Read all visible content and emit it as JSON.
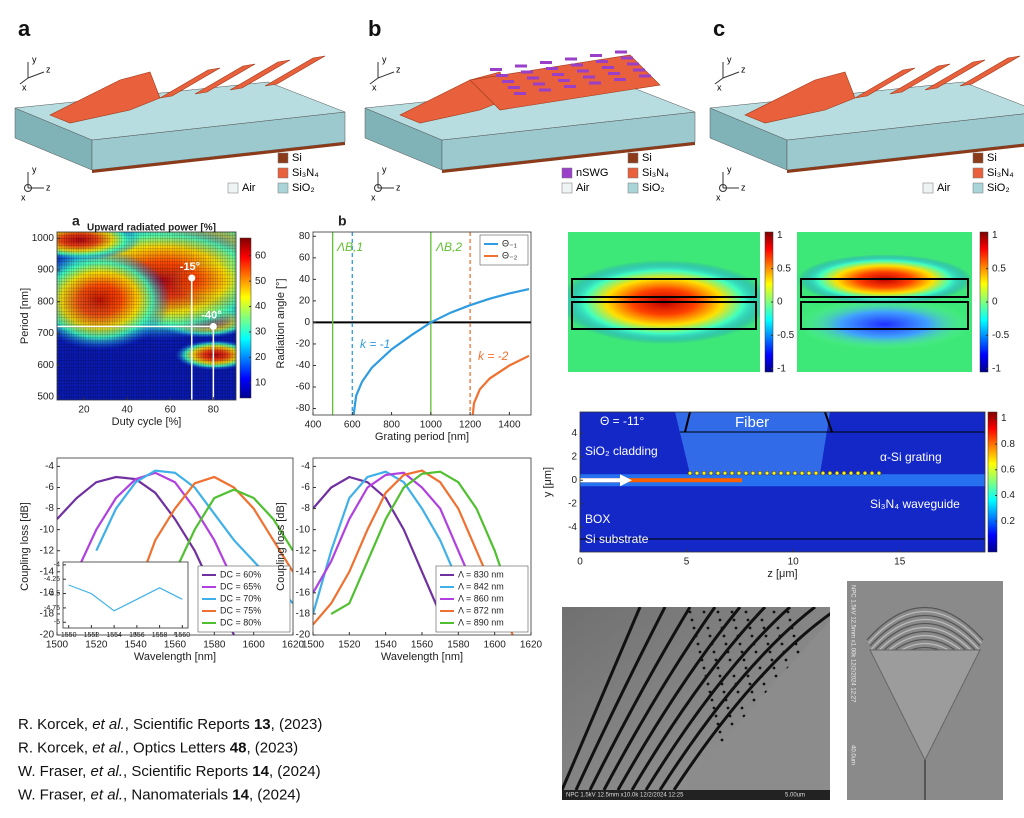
{
  "schematics": [
    {
      "letter": "a",
      "legend": [
        {
          "label": "Si",
          "color": "#8b3a1a"
        },
        {
          "label": "Si₃N₄",
          "color": "#e8603c"
        },
        {
          "label": "Air",
          "color": "#eef3f3"
        },
        {
          "label": "SiO₂",
          "color": "#a9d5d9"
        }
      ]
    },
    {
      "letter": "b",
      "legend": [
        {
          "label": "nSWG",
          "color": "#9a40c8"
        },
        {
          "label": "Si",
          "color": "#8b3a1a"
        },
        {
          "label": "Si₃N₄",
          "color": "#e8603c"
        },
        {
          "label": "Air",
          "color": "#eef3f3"
        },
        {
          "label": "SiO₂",
          "color": "#a9d5d9"
        }
      ]
    },
    {
      "letter": "c",
      "legend": [
        {
          "label": "Si",
          "color": "#8b3a1a"
        },
        {
          "label": "Si₃N₄",
          "color": "#e8603c"
        },
        {
          "label": "Air",
          "color": "#eef3f3"
        },
        {
          "label": "SiO₂",
          "color": "#a9d5d9"
        }
      ]
    }
  ],
  "axis_labels": [
    "x",
    "y",
    "z"
  ],
  "chart_data": [
    {
      "type": "heatmap",
      "letter": "a",
      "title": "Upward radiated power [%]",
      "x_label": "Duty cycle [%]",
      "y_label": "Period [nm]",
      "xlim": [
        7.5,
        90.5
      ],
      "xticks": [
        20,
        40,
        60,
        80
      ],
      "ylim": [
        490,
        1020
      ],
      "yticks": [
        500,
        600,
        700,
        800,
        900,
        1000
      ],
      "clim": [
        4,
        67
      ],
      "cticks": [
        10,
        20,
        30,
        40,
        50,
        60
      ],
      "points": {
        "x": [
          70,
          80
        ],
        "y": [
          875,
          722
        ],
        "labels": [
          "-15°",
          "-40°"
        ]
      }
    },
    {
      "type": "line",
      "letter": "b",
      "x_label": "Grating period [nm]",
      "y_label": "Radiation angle [°]",
      "xlim": [
        400,
        1510
      ],
      "xticks": [
        400,
        600,
        800,
        1000,
        1200,
        1400
      ],
      "ylim": [
        -86,
        84
      ],
      "yticks": [
        -80,
        -60,
        -40,
        -20,
        0,
        20,
        40,
        60,
        80
      ],
      "zero_line": true,
      "legend": "upper right",
      "series": [
        {
          "name": "Θ₋₁",
          "color": "#2f9be0",
          "x": [
            605,
            620,
            650,
            700,
            800,
            900,
            1000,
            1100,
            1200,
            1300,
            1400,
            1500
          ],
          "values": [
            -88,
            -68,
            -55,
            -42,
            -25,
            -12,
            0,
            9,
            16,
            22,
            27,
            31
          ]
        },
        {
          "name": "Θ₋₂",
          "color": "#f07030",
          "x": [
            1212,
            1220,
            1250,
            1300,
            1400,
            1500
          ],
          "values": [
            -88,
            -75,
            -62,
            -52,
            -40,
            -31
          ]
        }
      ],
      "vlines": [
        {
          "x": 500,
          "label": "ΛB,1",
          "color": "#60c030"
        },
        {
          "x": 1000,
          "label": "ΛB,2",
          "color": "#60c030"
        },
        {
          "x": 600,
          "color": "#2f9be0",
          "dashed": true
        },
        {
          "x": 1200,
          "color": "#f07030",
          "dashed": true
        }
      ],
      "annotations": [
        "k = -1",
        "k = -2"
      ]
    },
    {
      "type": "line",
      "x_label": "Wavelength [nm]",
      "y_label": "Coupling loss [dB]",
      "xlim": [
        1500,
        1620
      ],
      "xticks": [
        1500,
        1520,
        1540,
        1560,
        1580,
        1600,
        1620
      ],
      "ylim": [
        -20,
        -3.2
      ],
      "yticks": [
        -20,
        -18,
        -16,
        -14,
        -12,
        -10,
        -8,
        -6,
        -4
      ],
      "legend": "lower right",
      "x": [
        1500,
        1510,
        1520,
        1530,
        1540,
        1550,
        1560,
        1570,
        1580,
        1590,
        1600,
        1610,
        1620
      ],
      "series": [
        {
          "name": "DC = 60%",
          "color": "#7030a0",
          "values": [
            -9,
            -7,
            -5.5,
            -5,
            -5.2,
            -6.5,
            -9,
            -12,
            -16,
            -20,
            null,
            null,
            null
          ]
        },
        {
          "name": "DC = 65%",
          "color": "#b040e0",
          "values": [
            null,
            -14,
            -10,
            -7,
            -5.2,
            -4.6,
            -5.5,
            -8,
            -11,
            -15,
            -19,
            null,
            null
          ]
        },
        {
          "name": "DC = 70%",
          "color": "#40b0e8",
          "values": [
            null,
            null,
            -12,
            -8,
            -5.5,
            -4.4,
            -4.6,
            -6,
            -8.5,
            -11,
            -13,
            -15,
            -17
          ]
        },
        {
          "name": "DC = 75%",
          "color": "#f07030",
          "values": [
            null,
            null,
            null,
            null,
            -16,
            -11,
            -8,
            -5.6,
            -5,
            -6,
            -8,
            -11,
            -14
          ]
        },
        {
          "name": "DC = 80%",
          "color": "#50c030",
          "values": [
            null,
            null,
            null,
            null,
            null,
            -18,
            -14,
            -10,
            -7,
            -6.2,
            -7,
            -9,
            -12
          ]
        }
      ]
    },
    {
      "type": "line",
      "xlim": [
        1549.5,
        1560.5
      ],
      "xticks": [
        1550,
        1552,
        1554,
        1556,
        1558,
        1560
      ],
      "ylim": [
        -5.1,
        -3.95
      ],
      "yticks": [
        -5,
        -4.75,
        -4.5,
        -4.25,
        -4
      ],
      "x": [
        1550,
        1552,
        1554,
        1556,
        1558,
        1560
      ],
      "series": [
        {
          "color": "#40b0e8",
          "values": [
            -4.35,
            -4.5,
            -4.8,
            -4.6,
            -4.4,
            -4.6
          ]
        }
      ]
    },
    {
      "type": "line",
      "x_label": "Wavelength [nm]",
      "y_label": "Coupling loss [dB]",
      "xlim": [
        1500,
        1620
      ],
      "xticks": [
        1500,
        1520,
        1540,
        1560,
        1580,
        1600,
        1620
      ],
      "ylim": [
        -20,
        -3.2
      ],
      "yticks": [
        -20,
        -18,
        -16,
        -14,
        -12,
        -10,
        -8,
        -6,
        -4
      ],
      "legend": "lower right",
      "x": [
        1500,
        1510,
        1520,
        1530,
        1540,
        1550,
        1560,
        1570,
        1580,
        1590,
        1600,
        1610,
        1620
      ],
      "series": [
        {
          "name": "Λ = 830 nm",
          "color": "#7030a0",
          "values": [
            -8,
            -6,
            -5,
            -5.5,
            -7,
            -10,
            -14,
            -18,
            null,
            null,
            null,
            null,
            null
          ]
        },
        {
          "name": "Λ = 842 nm",
          "color": "#40b0e8",
          "values": [
            -18,
            -12,
            -7,
            -5,
            -4.5,
            -5.5,
            -8,
            -11,
            -15,
            -19,
            null,
            null,
            null
          ]
        },
        {
          "name": "Λ = 860 nm",
          "color": "#b040e0",
          "values": [
            -16,
            -13,
            -9,
            -6,
            -4.8,
            -4.6,
            -6,
            -8,
            -12,
            -16,
            -19,
            null,
            null
          ]
        },
        {
          "name": "Λ = 872 nm",
          "color": "#f07030",
          "values": [
            -19,
            -17,
            -14,
            -10,
            -6.5,
            -4.8,
            -4.4,
            -5.5,
            -8,
            -12,
            -16,
            -20,
            null
          ]
        },
        {
          "name": "Λ = 890 nm",
          "color": "#50c030",
          "values": [
            null,
            -18,
            -17,
            -13,
            -9,
            -6,
            -4.7,
            -4.5,
            -5.5,
            -8,
            -12,
            -17,
            null
          ]
        }
      ]
    },
    {
      "type": "field",
      "clim": [
        -1.05,
        1.05
      ],
      "cticks": [
        -1,
        -0.5,
        0,
        0.5,
        1
      ]
    },
    {
      "type": "field",
      "clim": [
        -1.05,
        1.05
      ],
      "cticks": [
        -1,
        -0.5,
        0,
        0.5,
        1
      ]
    },
    {
      "type": "field",
      "x_label": "z [μm]",
      "y_label": "y [μm]",
      "xlim": [
        0,
        19
      ],
      "xticks": [
        0,
        5,
        10,
        15
      ],
      "ylim": [
        -6.1,
        5.8
      ],
      "yticks": [
        -4,
        -2,
        0,
        2,
        4
      ],
      "clim": [
        -0.04,
        1.05
      ],
      "cticks": [
        0.2,
        0.4,
        0.6,
        0.8,
        1
      ],
      "annotations": [
        "Θ = -11°",
        "Fiber",
        "SiO₂ cladding",
        "α-Si grating",
        "Si₃N₄ waveguide",
        "BOX",
        "Si substrate"
      ]
    }
  ],
  "sem": [
    {
      "info": "NPC 1.5kV 12.5mm x10.0k 12/2/2024 12:25",
      "scale": "5.00um"
    },
    {
      "info": "NPC 1.5kV 12.5mm x1.00k 12/2/2024 12:27",
      "scale": "40.0um"
    }
  ],
  "references": [
    {
      "authors": "R. Korcek, ",
      "etal": "et al.",
      "journal": ", Scientific Reports ",
      "volume": "13",
      "year": ", (2023)"
    },
    {
      "authors": "R. Korcek, ",
      "etal": "et al.",
      "journal": ", Optics Letters ",
      "volume": "48",
      "year": ", (2023)"
    },
    {
      "authors": "W. Fraser, ",
      "etal": "et al.",
      "journal": ", Scientific Reports ",
      "volume": "14",
      "year": ", (2024)"
    },
    {
      "authors": "W. Fraser, ",
      "etal": "et al.",
      "journal": ", Nanomaterials ",
      "volume": "14",
      "year": ", (2024)"
    }
  ]
}
